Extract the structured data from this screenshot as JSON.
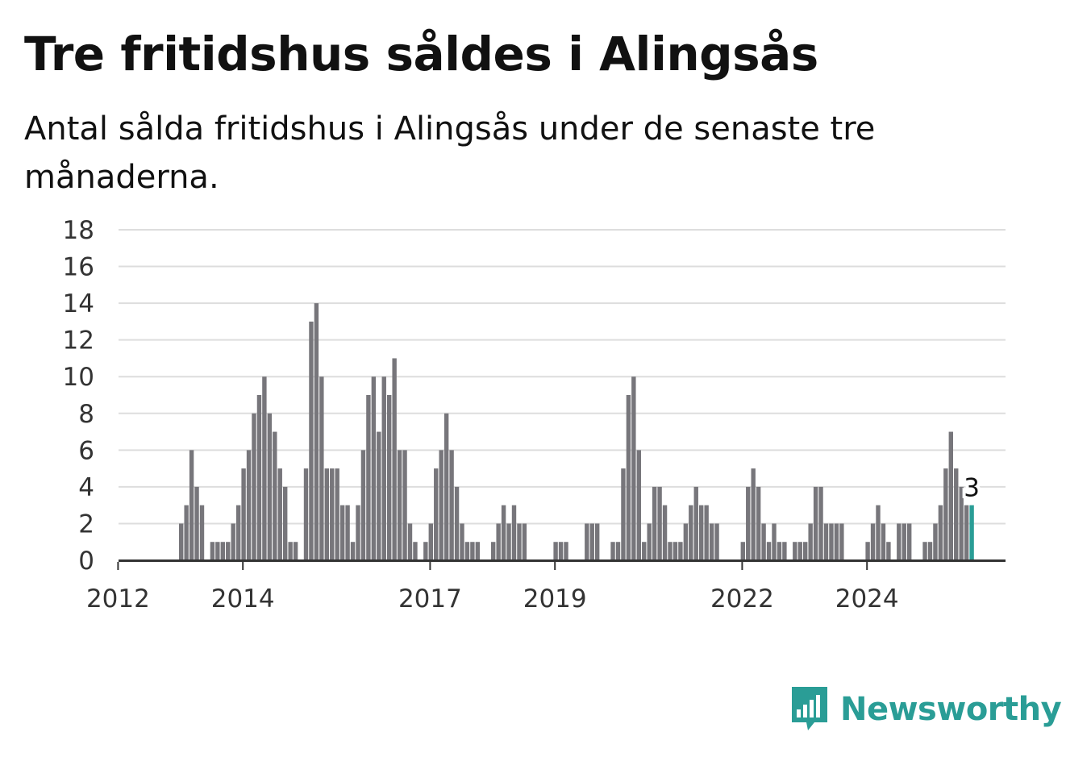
{
  "header": {
    "title": "Tre fritidshus såldes i Alingsås",
    "subtitle": "Antal sålda fritidshus i Alingsås under de senaste tre månaderna."
  },
  "brand": {
    "name": "Newsworthy",
    "accent_color": "#2a9d96",
    "bar_color": "#77767b",
    "logo_icon": "bar-chart-speech-bubble-icon"
  },
  "chart_data": {
    "type": "bar",
    "title": "Tre fritidshus såldes i Alingsås",
    "xlabel": "",
    "ylabel": "",
    "ylim": [
      0,
      18
    ],
    "y_ticks": [
      0,
      2,
      4,
      6,
      8,
      10,
      12,
      14,
      16,
      18
    ],
    "x_ticks": [
      {
        "label": "2012",
        "index": 4
      },
      {
        "label": "2014",
        "index": 28
      },
      {
        "label": "2017",
        "index": 64
      },
      {
        "label": "2019",
        "index": 88
      },
      {
        "label": "2022",
        "index": 124
      },
      {
        "label": "2024",
        "index": 148
      }
    ],
    "grid": true,
    "highlight_last": true,
    "last_value_label": "3",
    "values": [
      0,
      0,
      0,
      0,
      0,
      0,
      0,
      0,
      0,
      0,
      0,
      0,
      2,
      3,
      6,
      4,
      3,
      0,
      1,
      1,
      1,
      1,
      2,
      3,
      5,
      6,
      8,
      9,
      10,
      8,
      7,
      5,
      4,
      1,
      1,
      0,
      5,
      13,
      14,
      10,
      5,
      5,
      5,
      3,
      3,
      1,
      3,
      6,
      9,
      10,
      7,
      10,
      9,
      11,
      6,
      6,
      2,
      1,
      0,
      1,
      2,
      5,
      6,
      8,
      6,
      4,
      2,
      1,
      1,
      1,
      0,
      0,
      1,
      2,
      3,
      2,
      3,
      2,
      2,
      0,
      0,
      0,
      0,
      0,
      1,
      1,
      1,
      0,
      0,
      0,
      2,
      2,
      2,
      0,
      0,
      1,
      1,
      5,
      9,
      10,
      6,
      1,
      2,
      4,
      4,
      3,
      1,
      1,
      1,
      2,
      3,
      4,
      3,
      3,
      2,
      2,
      0,
      0,
      0,
      0,
      1,
      4,
      5,
      4,
      2,
      1,
      2,
      1,
      1,
      0,
      1,
      1,
      1,
      2,
      4,
      4,
      2,
      2,
      2,
      2,
      0,
      0,
      0,
      0,
      1,
      2,
      3,
      2,
      1,
      0,
      2,
      2,
      2,
      0,
      0,
      1,
      1,
      2,
      3,
      5,
      7,
      5,
      4,
      3,
      3
    ]
  }
}
